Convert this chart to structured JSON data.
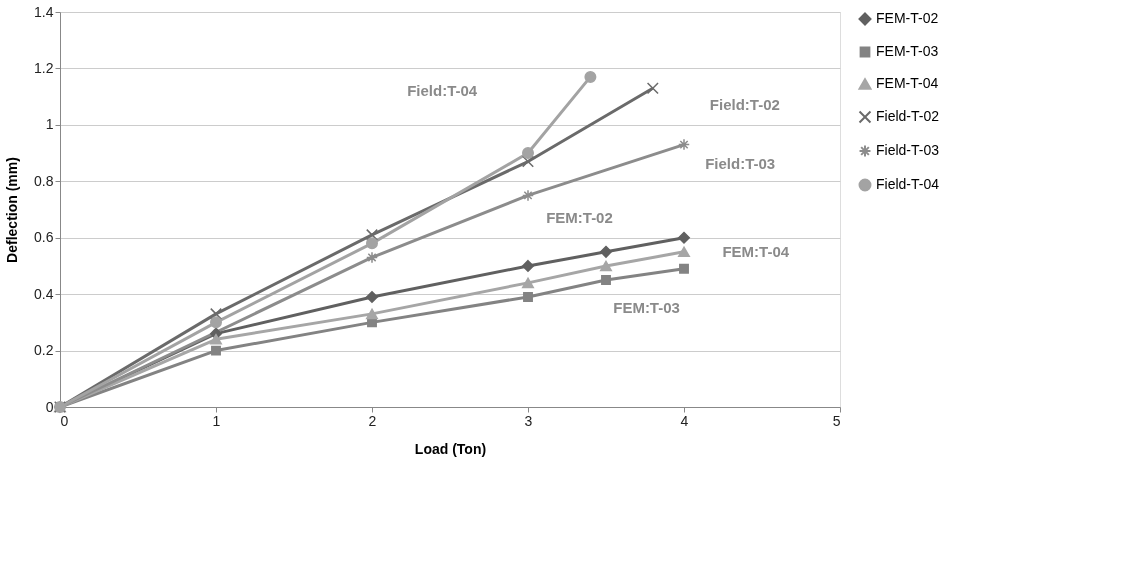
{
  "chart_data": {
    "type": "line",
    "xlabel": "Load (Ton)",
    "ylabel": "Deflection (mm)",
    "xlim": [
      0,
      5
    ],
    "xticks": [
      0,
      1,
      2,
      3,
      4,
      5
    ],
    "ylim": [
      0,
      1.4
    ],
    "yticks": [
      0,
      0.2,
      0.4,
      0.6,
      0.8,
      1,
      1.2,
      1.4
    ],
    "grid": "y",
    "legend": "right",
    "series": [
      {
        "name": "FEM-T-02",
        "color": "#606060",
        "marker": "diamond",
        "x": [
          0,
          1,
          2,
          3,
          3.5,
          4
        ],
        "values": [
          0,
          0.26,
          0.39,
          0.5,
          0.55,
          0.6
        ]
      },
      {
        "name": "FEM-T-03",
        "color": "#838383",
        "marker": "square",
        "x": [
          0,
          1,
          2,
          3,
          3.5,
          4
        ],
        "values": [
          0,
          0.2,
          0.3,
          0.39,
          0.45,
          0.49
        ]
      },
      {
        "name": "FEM-T-04",
        "color": "#a6a6a6",
        "marker": "triangle",
        "x": [
          0,
          1,
          2,
          3,
          3.5,
          4
        ],
        "values": [
          0,
          0.24,
          0.33,
          0.44,
          0.5,
          0.55
        ]
      },
      {
        "name": "Field-T-02",
        "color": "#6a6a6a",
        "marker": "cross",
        "x": [
          0,
          1,
          2,
          3,
          3.8
        ],
        "values": [
          0,
          0.33,
          0.61,
          0.87,
          1.13
        ]
      },
      {
        "name": "Field-T-03",
        "color": "#8c8c8c",
        "marker": "cross",
        "x": [
          0,
          1,
          2,
          3,
          4
        ],
        "values": [
          0,
          null,
          0.53,
          0.75,
          0.93
        ]
      },
      {
        "name": "Field-T-04",
        "color": "#a3a3a3",
        "marker": "circle",
        "x": [
          0,
          1,
          2,
          3,
          3.4
        ],
        "values": [
          0,
          0.3,
          0.58,
          0.9,
          1.17
        ]
      }
    ],
    "annotations": [
      "Field:T-04",
      "Field:T-02",
      "Field:T-03",
      "FEM:T-02",
      "FEM:T-04",
      "FEM:T-03"
    ]
  }
}
